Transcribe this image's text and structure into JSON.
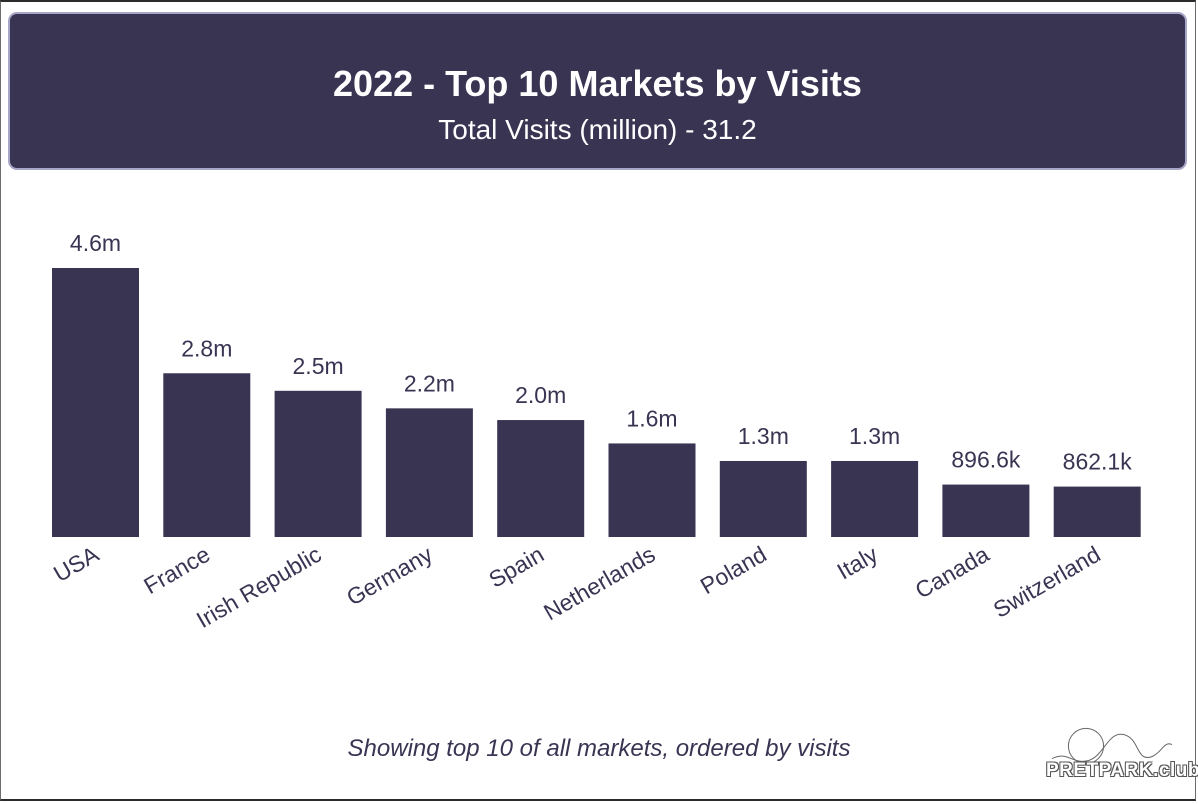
{
  "header": {
    "title": "2022 - Top 10 Markets by Visits",
    "subtitle": "Total Visits (million) - 31.2"
  },
  "footnote": "Showing top 10 of all markets, ordered by visits",
  "logo": {
    "text": "PRETPARK.club",
    "icon": "rollercoaster-ferris-wheel-logo"
  },
  "colors": {
    "bar": "#3a3453",
    "header_bg": "#3a3453",
    "text": "#3a3453"
  },
  "chart_data": {
    "type": "bar",
    "title": "2022 - Top 10 Markets by Visits",
    "subtitle": "Total Visits (million) - 31.2",
    "categories": [
      "USA",
      "France",
      "Irish Republic",
      "Germany",
      "Spain",
      "Netherlands",
      "Poland",
      "Italy",
      "Canada",
      "Switzerland"
    ],
    "values": [
      4.6,
      2.8,
      2.5,
      2.2,
      2.0,
      1.6,
      1.3,
      1.3,
      0.8966,
      0.8621
    ],
    "data_labels": [
      "4.6m",
      "2.8m",
      "2.5m",
      "2.2m",
      "2.0m",
      "1.6m",
      "1.3m",
      "1.3m",
      "896.6k",
      "862.1k"
    ],
    "xlabel": "",
    "ylabel": "",
    "ylim": [
      0,
      4.6
    ],
    "grid": false,
    "legend": "none"
  }
}
